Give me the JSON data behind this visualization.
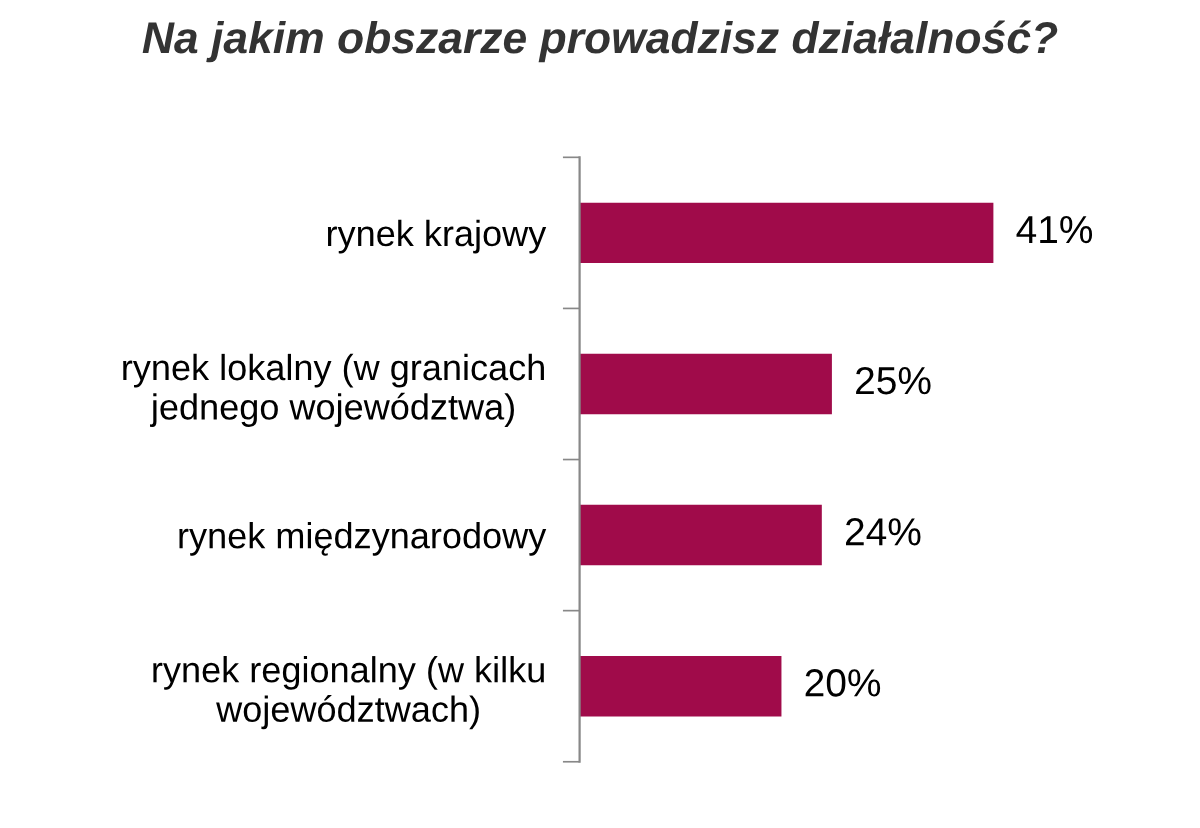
{
  "chart_data": {
    "type": "bar",
    "orientation": "horizontal",
    "title": "Na jakim obszarze prowadzisz działalność?",
    "categories": [
      "rynek krajowy",
      "rynek lokalny (w granicach\njednego województwa)",
      "rynek międzynarodowy",
      "rynek regionalny (w kilku\nwojewództwach)"
    ],
    "values": [
      41,
      25,
      24,
      20
    ],
    "value_labels": [
      "41%",
      "25%",
      "24%",
      "20%"
    ],
    "color": "#a00b4a",
    "grid": false,
    "legend": false
  }
}
